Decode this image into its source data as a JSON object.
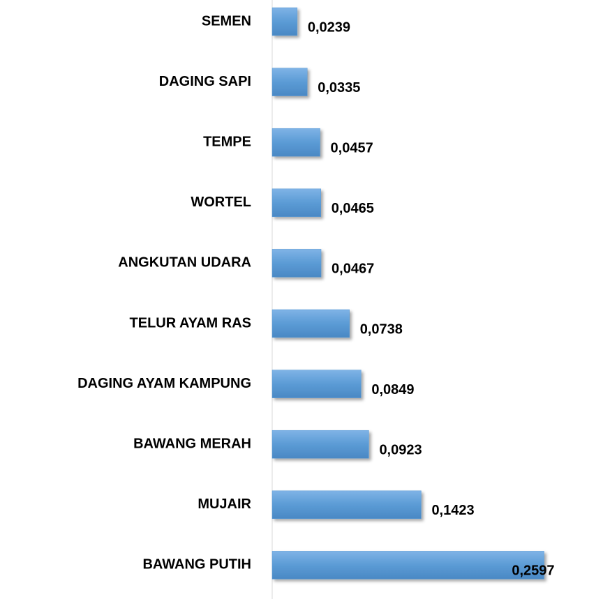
{
  "chart_data": {
    "type": "bar",
    "orientation": "horizontal",
    "categories": [
      "SEMEN",
      "DAGING SAPI",
      "TEMPE",
      "WORTEL",
      "ANGKUTAN UDARA",
      "TELUR AYAM RAS",
      "DAGING AYAM KAMPUNG",
      "BAWANG MERAH",
      "MUJAIR",
      "BAWANG PUTIH"
    ],
    "values": [
      0.0239,
      0.0335,
      0.0457,
      0.0465,
      0.0467,
      0.0738,
      0.0849,
      0.0923,
      0.1423,
      0.2597
    ],
    "value_labels": [
      "0,0239",
      "0,0335",
      "0,0457",
      "0,0465",
      "0,0467",
      "0,0738",
      "0,0849",
      "0,0923",
      "0,1423",
      "0,2597"
    ],
    "color": "#5b9bd5",
    "xlim": [
      0,
      0.3
    ]
  }
}
